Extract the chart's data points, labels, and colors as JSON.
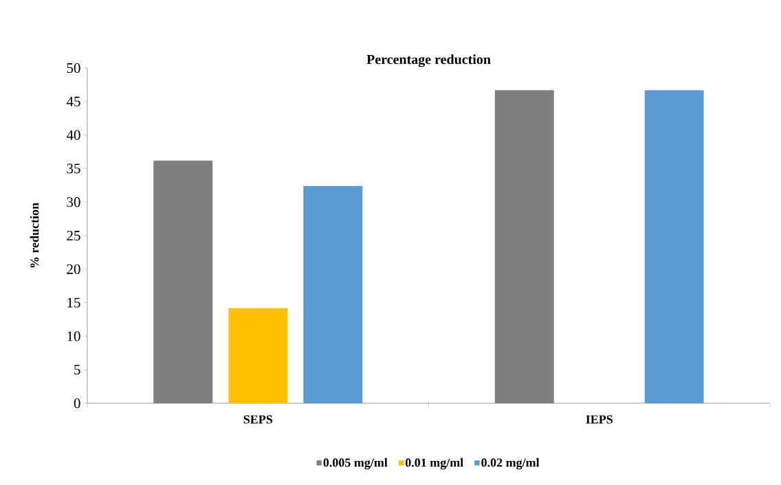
{
  "chart_data": {
    "type": "bar",
    "title": "Percentage reduction",
    "ylabel": "% reduction",
    "categories": [
      "SEPS",
      "IEPS"
    ],
    "series": [
      {
        "name": "0.005 mg/ml",
        "color": "#7f7f7f",
        "values": [
          36.2,
          46.7
        ]
      },
      {
        "name": "0.01 mg/ml",
        "color": "#ffc000",
        "values": [
          14.2,
          0
        ]
      },
      {
        "name": "0.02 mg/ml",
        "color": "#5b9bd5",
        "values": [
          32.4,
          46.7
        ]
      }
    ],
    "ylim": [
      0,
      50
    ],
    "yticks": [
      0,
      5,
      10,
      15,
      20,
      25,
      30,
      35,
      40,
      45,
      50
    ],
    "grid": false,
    "legend": "bottom"
  }
}
